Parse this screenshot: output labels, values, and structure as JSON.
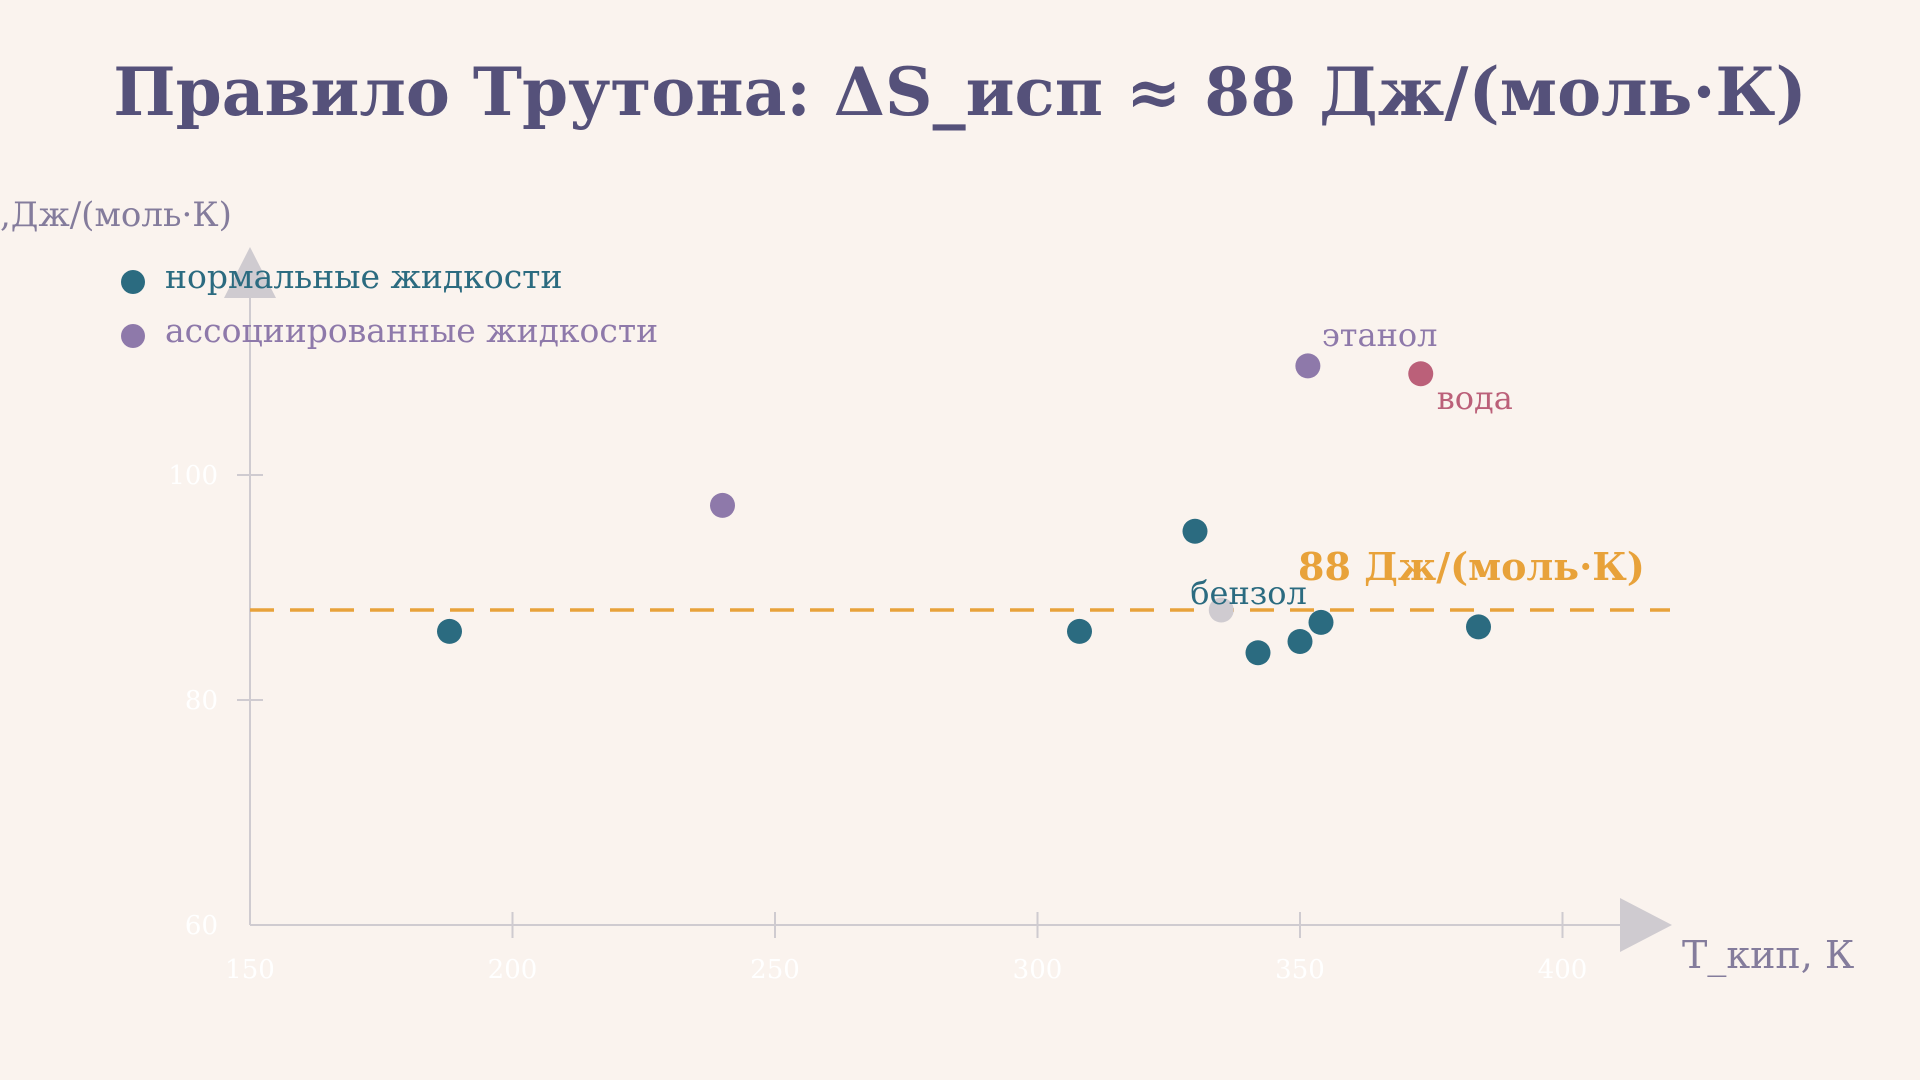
{
  "chart_data": {
    "type": "scatter",
    "title": "Правило Трутона: ΔS_исп ≈ 88 Дж/(моль·К)",
    "xlabel": "T_кип, К",
    "ylabel": ",Дж/(моль·К)",
    "xlim": [
      150,
      420
    ],
    "ylim": [
      60,
      120
    ],
    "xticks": [
      150,
      200,
      250,
      300,
      350,
      400
    ],
    "yticks": [
      60,
      80,
      100
    ],
    "grid": false,
    "legend_position": "top-left",
    "reference_line": {
      "y": 88,
      "label": "88 Дж/(моль·К)",
      "color": "#e8a23a",
      "style": "dashed"
    },
    "series": [
      {
        "name": "нормальные жидкости",
        "color": "#2b6b80",
        "points": [
          {
            "x": 188,
            "y": 86.1
          },
          {
            "x": 308,
            "y": 86.1
          },
          {
            "x": 330,
            "y": 95.0
          },
          {
            "x": 335,
            "y": 88.0,
            "label": "бензол"
          },
          {
            "x": 342,
            "y": 84.2
          },
          {
            "x": 350,
            "y": 85.2
          },
          {
            "x": 354,
            "y": 86.9
          },
          {
            "x": 384,
            "y": 86.5
          }
        ]
      },
      {
        "name": "ассоциированные жидкости",
        "color": "#8e79aa",
        "points": [
          {
            "x": 240,
            "y": 97.3
          },
          {
            "x": 351.5,
            "y": 109.7,
            "label": "этанол"
          },
          {
            "x": 373,
            "y": 109.0,
            "label": "вода",
            "color": "#bb6079"
          }
        ]
      }
    ]
  },
  "colors": {
    "background": "#faf3ee",
    "title": "#55517a",
    "axis": "#cfcbd0",
    "tick_label": "#ffffff",
    "axis_label": "#847c9c",
    "reference": "#e8a23a",
    "water_label": "#bb6079",
    "benzene_label": "#2b6b80"
  }
}
